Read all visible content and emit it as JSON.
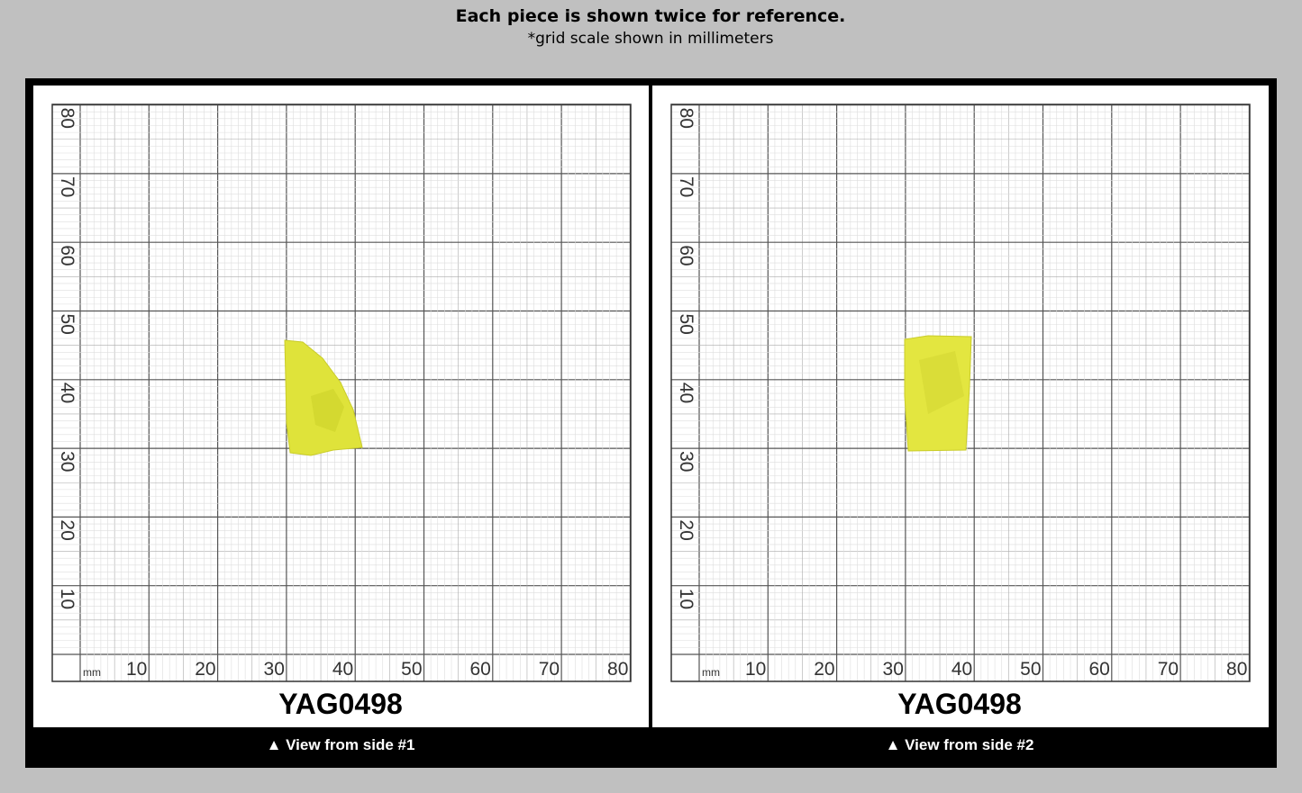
{
  "header": {
    "title": "Each piece is shown twice for reference.",
    "subtitle": "*grid scale shown in millimeters"
  },
  "panels": [
    {
      "unit": "mm",
      "x_labels": [
        10,
        20,
        30,
        40,
        50,
        60,
        70,
        80
      ],
      "y_labels": [
        10,
        20,
        30,
        40,
        50,
        60,
        70,
        80
      ],
      "label": "YAG0498",
      "caption": "▲ View from side #1"
    },
    {
      "unit": "mm",
      "x_labels": [
        10,
        20,
        30,
        40,
        50,
        60,
        70,
        80
      ],
      "y_labels": [
        10,
        20,
        30,
        40,
        50,
        60,
        70,
        80
      ],
      "label": "YAG0498",
      "caption": "▲ View from side #2"
    }
  ]
}
